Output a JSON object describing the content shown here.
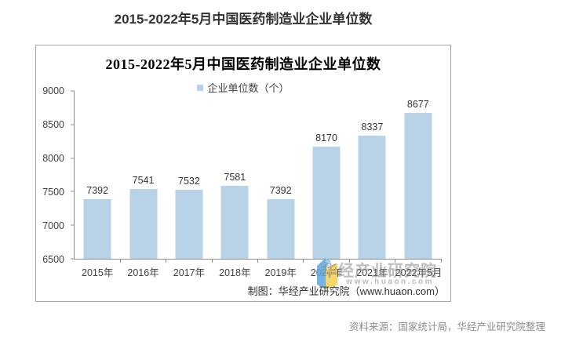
{
  "page": {
    "title": "2015-2022年5月中国医药制造业企业单位数",
    "source_note": "资料来源：国家统计局，华经产业研究院整理"
  },
  "chart": {
    "title": "2015-2022年5月中国医药制造业企业单位数",
    "legend_label": "企业单位数（个）",
    "footer": "制图：华经产业研究院（www.huaon.com）",
    "watermark_name": "华经产业研究院",
    "watermark_url": "www.huaon.com"
  },
  "chart_data": {
    "type": "bar",
    "title": "2015-2022年5月中国医药制造业企业单位数",
    "legend": [
      "企业单位数（个）"
    ],
    "categories": [
      "2015年",
      "2016年",
      "2017年",
      "2018年",
      "2019年",
      "2020年",
      "2021年",
      "2022年5月"
    ],
    "values": [
      7392,
      7541,
      7532,
      7581,
      7392,
      8170,
      8337,
      8677
    ],
    "xlabel": "",
    "ylabel": "",
    "ylim": [
      6500,
      9000
    ],
    "yticks": [
      6500,
      7000,
      7500,
      8000,
      8500,
      9000
    ],
    "grid": false,
    "legend_position": "top",
    "bar_color": "#b8d3e8",
    "axis_color": "#8c8c8c"
  }
}
